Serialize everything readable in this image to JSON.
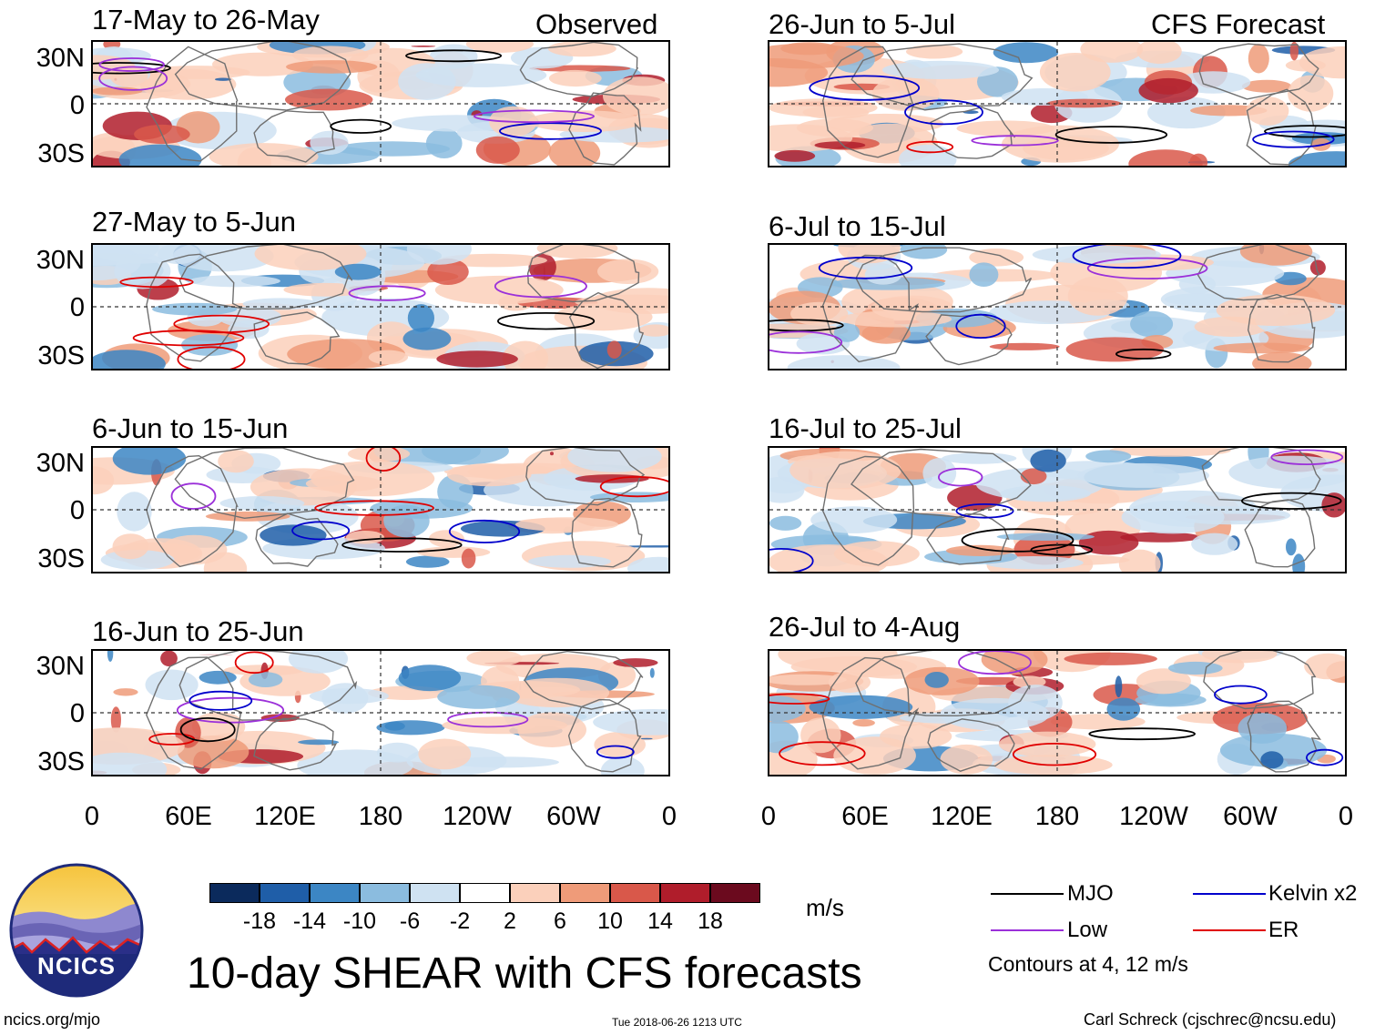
{
  "observed_label": "Observed",
  "forecast_label": "CFS Forecast",
  "panels_left": [
    {
      "title": "17-May to 26-May"
    },
    {
      "title": "27-May to 5-Jun"
    },
    {
      "title": "6-Jun to 15-Jun"
    },
    {
      "title": "16-Jun to 25-Jun"
    }
  ],
  "panels_right": [
    {
      "title": "26-Jun to 5-Jul"
    },
    {
      "title": "6-Jul to 15-Jul"
    },
    {
      "title": "16-Jul to 25-Jul"
    },
    {
      "title": "26-Jul to 4-Aug"
    }
  ],
  "lat_labels": [
    "30N",
    "0",
    "30S"
  ],
  "lon_labels": [
    "0",
    "60E",
    "120E",
    "180",
    "120W",
    "60W",
    "0"
  ],
  "colorbar": {
    "unit": "m/s",
    "ticks": [
      "-18",
      "-14",
      "-10",
      "-6",
      "-2",
      "2",
      "6",
      "10",
      "14",
      "18"
    ],
    "colors": [
      "#0b2a5c",
      "#1f5ea8",
      "#3c86c4",
      "#8bbcdf",
      "#cfe2f2",
      "#ffffff",
      "#fbd0bb",
      "#ef9b79",
      "#d9584a",
      "#b01d2b",
      "#6b0a1e"
    ]
  },
  "legend": {
    "items": [
      {
        "label": "MJO",
        "color": "#000000"
      },
      {
        "label": "Kelvin x2",
        "color": "#0000cc"
      },
      {
        "label": "Low",
        "color": "#9b30d9"
      },
      {
        "label": "ER",
        "color": "#e00000"
      }
    ],
    "note": "Contours at 4, 12 m/s"
  },
  "title": "10-day SHEAR with CFS forecasts",
  "logo_text": "NCICS",
  "footer": {
    "url": "ncics.org/mjo",
    "timestamp": "Tue 2018-06-26 1213 UTC",
    "author": "Carl Schreck (cjschrec@ncsu.edu)"
  }
}
